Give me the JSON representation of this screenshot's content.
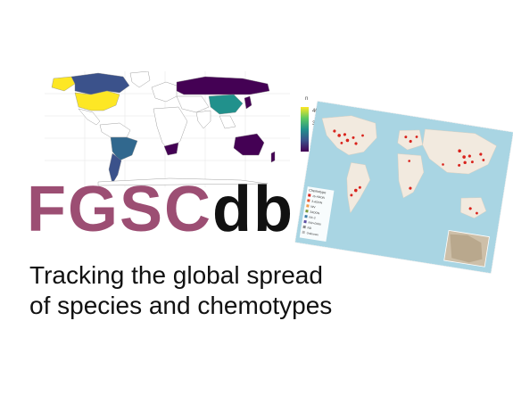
{
  "logo": {
    "part1": "FGSC",
    "part2": "db"
  },
  "tagline": {
    "line1": "Tracking the global spread",
    "line2": "of species and chemotypes"
  },
  "legend": {
    "title": "n",
    "ticks": [
      "40",
      "30",
      "20",
      "10"
    ]
  },
  "colors": {
    "brand_mauve": "#9c4e73",
    "viridis_low": "#440154",
    "viridis_mid": "#21918c",
    "viridis_high": "#fde725",
    "ocean": "#a9d5e3",
    "land": "#f2eadf",
    "occurrence_point": "#d9231c"
  },
  "map_legend": {
    "title": "Chemotype",
    "entries": [
      "15-ADON",
      "3-ADON",
      "NIV",
      "3ADON",
      "NX-2",
      "NIV+DON",
      "ND",
      "Unknown"
    ]
  }
}
